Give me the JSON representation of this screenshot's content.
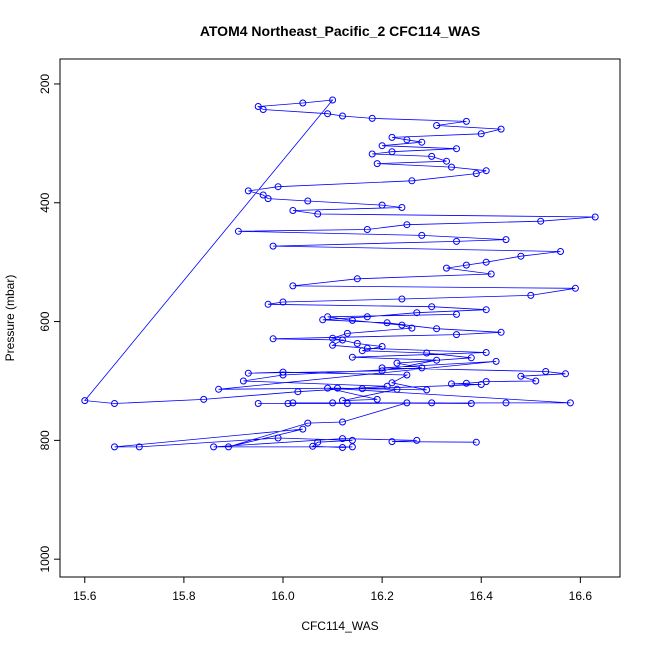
{
  "chart_data": {
    "type": "line",
    "title": "ATOM4 Northeast_Pacific_2 CFC114_WAS",
    "xlabel": "CFC114_WAS",
    "ylabel": "Pressure (mbar)",
    "xlim": [
      15.55,
      16.68
    ],
    "ylim": [
      1030,
      158
    ],
    "y_reversed": true,
    "x_ticks": [
      15.6,
      15.8,
      16.0,
      16.2,
      16.4,
      16.6
    ],
    "y_ticks": [
      200,
      400,
      600,
      800,
      1000
    ],
    "x_tick_labels": [
      "15.6",
      "15.8",
      "16.0",
      "16.2",
      "16.4",
      "16.6"
    ],
    "y_tick_labels": [
      "200",
      "400",
      "600",
      "800",
      "1000"
    ],
    "grid": false,
    "legend": "none",
    "color": "#0000ff",
    "markers": "open-circle",
    "series": [
      {
        "x": [
          16.39,
          16.22,
          16.27,
          16.12,
          15.86,
          16.14,
          16.12,
          16.06,
          16.07,
          16.14,
          15.99,
          15.71,
          15.66,
          16.04,
          15.89,
          16.05,
          16.12,
          16.25,
          16.01,
          16.02,
          16.3,
          16.38,
          16.1,
          16.13,
          15.95,
          16.45,
          16.58,
          16.09,
          16.19,
          16.12,
          16.23,
          16.16,
          16.4,
          16.34,
          16.37,
          16.41,
          16.51,
          16.48,
          16.57,
          16.53,
          16.2,
          16.43,
          15.87,
          16.11,
          16.29,
          16.22,
          16.25,
          16.0,
          15.93,
          16.2,
          16.31,
          16.14,
          16.41,
          16.17,
          16.1,
          16.12,
          15.98,
          16.35,
          16.44,
          16.31,
          16.21,
          16.08,
          16.17,
          16.27,
          16.41,
          16.3,
          15.97,
          16.0,
          16.24,
          16.5,
          16.59,
          16.02,
          16.15,
          16.42,
          16.33,
          16.37,
          16.41,
          16.48,
          16.56,
          15.98,
          16.35,
          16.45,
          16.28,
          15.91,
          16.17,
          16.25,
          16.52,
          16.63,
          16.07,
          16.02,
          16.24,
          16.2,
          16.05,
          15.97,
          15.96,
          15.93,
          15.99,
          16.26,
          16.39,
          16.41,
          16.34,
          16.19,
          16.33,
          16.3,
          16.18,
          16.22,
          16.35,
          16.2,
          16.28,
          16.25,
          16.22,
          16.4,
          16.44,
          16.31,
          16.37,
          16.18,
          16.12,
          16.09,
          15.96,
          15.95,
          16.04,
          16.1,
          15.6,
          15.66,
          15.84,
          16.03,
          16.21,
          15.92,
          16.0,
          16.28,
          16.23,
          16.38,
          16.29,
          16.16,
          16.2,
          16.15,
          16.1,
          16.13,
          16.26,
          16.24,
          16.14,
          16.09,
          16.35
        ]
      }
    ],
    "pressures": [
      803,
      802,
      800,
      797,
      811,
      811,
      812,
      810,
      803,
      800,
      796,
      811,
      811,
      781,
      811,
      771,
      769,
      737,
      738,
      737,
      737,
      738,
      737,
      738,
      738,
      737,
      737,
      712,
      731,
      733,
      714,
      713,
      706,
      705,
      704,
      701,
      700,
      692,
      688,
      684,
      678,
      667,
      714,
      712,
      715,
      703,
      690,
      685,
      687,
      683,
      665,
      660,
      652,
      645,
      640,
      631,
      629,
      622,
      618,
      612,
      602,
      597,
      592,
      585,
      580,
      575,
      571,
      567,
      562,
      556,
      544,
      540,
      528,
      520,
      510,
      505,
      500,
      490,
      482,
      473,
      465,
      462,
      455,
      448,
      445,
      437,
      431,
      424,
      419,
      413,
      408,
      404,
      397,
      393,
      387,
      380,
      373,
      363,
      351,
      346,
      340,
      334,
      330,
      322,
      318,
      314,
      309,
      304,
      298,
      294,
      290,
      284,
      276,
      270,
      263,
      258,
      254,
      250,
      243,
      238,
      232,
      227,
      733,
      738,
      731,
      718,
      709,
      700,
      690,
      678,
      670,
      661,
      653,
      649,
      642,
      637,
      628,
      620,
      611,
      606,
      598,
      592,
      588
    ]
  }
}
